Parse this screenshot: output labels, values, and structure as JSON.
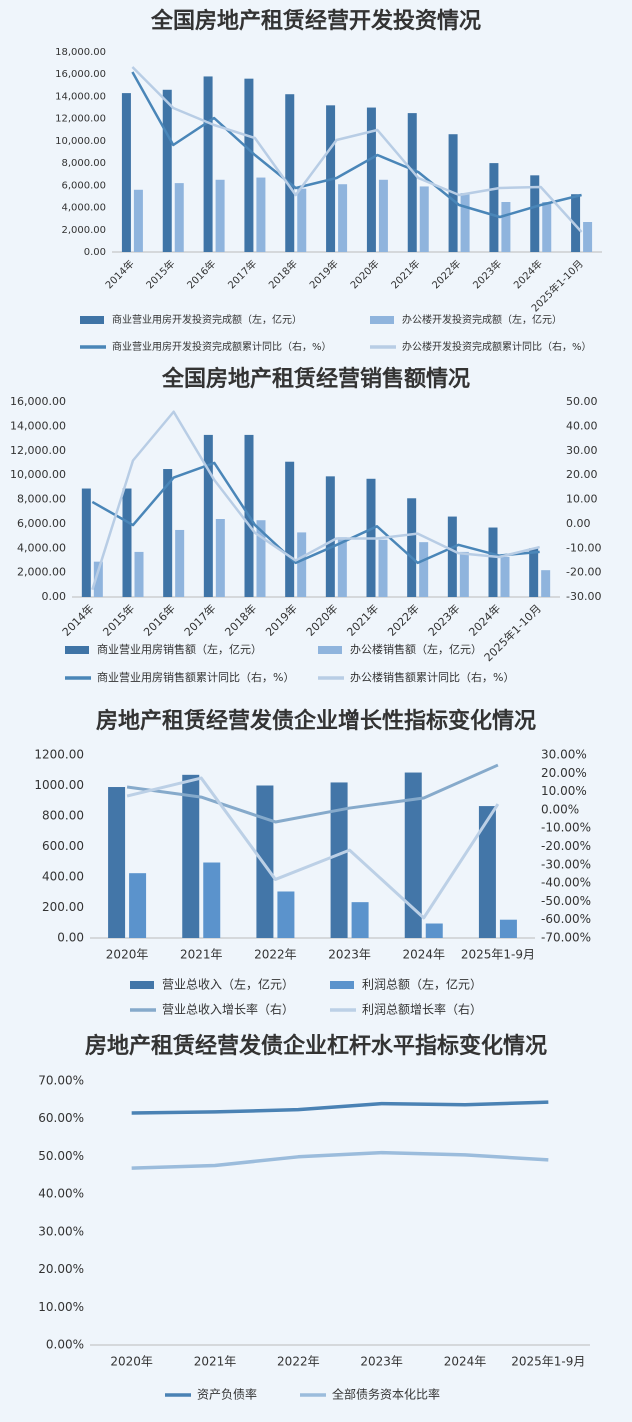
{
  "chart_data": [
    {
      "type": "combo",
      "title": "全国房地产租赁经营开发投资情况",
      "categories": [
        "2014年",
        "2015年",
        "2016年",
        "2017年",
        "2018年",
        "2019年",
        "2020年",
        "2021年",
        "2022年",
        "2023年",
        "2024年",
        "2025年1-10月"
      ],
      "ylim": [
        0,
        18000
      ],
      "yticks": [
        {
          "value": 0,
          "label": "0.00"
        },
        {
          "value": 2000,
          "label": "2,000.00"
        },
        {
          "value": 4000,
          "label": "4,000.00"
        },
        {
          "value": 6000,
          "label": "6,000.00"
        },
        {
          "value": 8000,
          "label": "8,000.00"
        },
        {
          "value": 10000,
          "label": "10,000.00"
        },
        {
          "value": 12000,
          "label": "12,000.00"
        },
        {
          "value": 14000,
          "label": "14,000.00"
        },
        {
          "value": 16000,
          "label": "16,000.00"
        },
        {
          "value": 18000,
          "label": "18,000.00"
        }
      ],
      "y2lim": [
        -40,
        40
      ],
      "series": [
        {
          "name": "商业营业用房开发投资完成额（左，亿元）",
          "type": "bar",
          "color": "#3f74a6",
          "values": [
            14300,
            14600,
            15800,
            15600,
            14200,
            13200,
            13000,
            12500,
            10600,
            8000,
            6900,
            5200
          ]
        },
        {
          "name": "办公楼开发投资完成额（左，亿元）",
          "type": "bar",
          "color": "#8fb4dd",
          "values": [
            5600,
            6200,
            6500,
            6700,
            5700,
            6100,
            6500,
            5900,
            5300,
            4500,
            4500,
            2700
          ]
        },
        {
          "name": "商业营业用房开发投资完成额累计同比（右，%）",
          "type": "line",
          "axis": "y2",
          "color": "#4a86b8",
          "values": [
            32,
            2.8,
            13.6,
            -1.2,
            -14.4,
            -10.4,
            -1.2,
            -8,
            -21.2,
            -26,
            -21.2,
            -17.2
          ]
        },
        {
          "name": "办公楼开发投资完成额累计同比（右，%）",
          "type": "line",
          "axis": "y2",
          "color": "#b8cde5",
          "values": [
            34,
            17.6,
            10.8,
            5.6,
            -17.2,
            4.8,
            8.8,
            -10.4,
            -17.2,
            -14.4,
            -14,
            -32
          ]
        }
      ]
    },
    {
      "type": "combo",
      "title": "全国房地产租赁经营销售额情况",
      "categories": [
        "2014年",
        "2015年",
        "2016年",
        "2017年",
        "2018年",
        "2019年",
        "2020年",
        "2021年",
        "2022年",
        "2023年",
        "2024年",
        "2025年1-10月"
      ],
      "ylim": [
        0,
        16000
      ],
      "yticks": [
        {
          "value": 0,
          "label": "0.00"
        },
        {
          "value": 2000,
          "label": "2,000.00"
        },
        {
          "value": 4000,
          "label": "4,000.00"
        },
        {
          "value": 6000,
          "label": "6,000.00"
        },
        {
          "value": 8000,
          "label": "8,000.00"
        },
        {
          "value": 10000,
          "label": "10,000.00"
        },
        {
          "value": 12000,
          "label": "12,000.00"
        },
        {
          "value": 14000,
          "label": "14,000.00"
        },
        {
          "value": 16000,
          "label": "16,000.00"
        }
      ],
      "y2lim": [
        -30,
        50
      ],
      "y2ticks": [
        {
          "value": -30,
          "label": "-30.00"
        },
        {
          "value": -20,
          "label": "-20.00"
        },
        {
          "value": -10,
          "label": "-10.00"
        },
        {
          "value": 0,
          "label": "0.00"
        },
        {
          "value": 10,
          "label": "10.00"
        },
        {
          "value": 20,
          "label": "20.00"
        },
        {
          "value": 30,
          "label": "30.00"
        },
        {
          "value": 40,
          "label": "40.00"
        },
        {
          "value": 50,
          "label": "50.00"
        }
      ],
      "series": [
        {
          "name": "商业营业用房销售额（左，亿元）",
          "type": "bar",
          "color": "#3f74a6",
          "values": [
            8900,
            8900,
            10500,
            13300,
            13300,
            11100,
            9900,
            9700,
            8100,
            6600,
            5700,
            4000
          ]
        },
        {
          "name": "办公楼销售额（左，亿元）",
          "type": "bar",
          "color": "#8fb4dd",
          "values": [
            2900,
            3700,
            5500,
            6400,
            6300,
            5300,
            4900,
            4700,
            4500,
            3700,
            3300,
            2200
          ]
        },
        {
          "name": "商业营业用房销售额累计同比（右，%）",
          "type": "line",
          "axis": "y2",
          "color": "#4a86b8",
          "values": [
            9,
            -0.5,
            19,
            25,
            -0.5,
            -16,
            -8.7,
            -1,
            -16,
            -8.6,
            -13,
            -11.5
          ]
        },
        {
          "name": "办公楼销售额累计同比（右，%）",
          "type": "line",
          "axis": "y2",
          "color": "#b8cde5",
          "values": [
            -27,
            26,
            46,
            18,
            -3.7,
            -15,
            -6,
            -6,
            -4,
            -12,
            -13.6,
            -9.5
          ]
        }
      ]
    },
    {
      "type": "combo",
      "title": "房地产租赁经营发债企业增长性指标变化情况",
      "categories": [
        "2020年",
        "2021年",
        "2022年",
        "2023年",
        "2024年",
        "2025年1-9月"
      ],
      "ylim": [
        0,
        1200
      ],
      "yticks": [
        {
          "value": 0,
          "label": "0.00"
        },
        {
          "value": 200,
          "label": "200.00"
        },
        {
          "value": 400,
          "label": "400.00"
        },
        {
          "value": 600,
          "label": "600.00"
        },
        {
          "value": 800,
          "label": "800.00"
        },
        {
          "value": 1000,
          "label": "1000.00"
        },
        {
          "value": 1200,
          "label": "1200.00"
        }
      ],
      "y2lim": [
        -70,
        30
      ],
      "y2ticks": [
        {
          "value": -70,
          "label": "-70.00%"
        },
        {
          "value": -60,
          "label": "-60.00%"
        },
        {
          "value": -50,
          "label": "-50.00%"
        },
        {
          "value": -40,
          "label": "-40.00%"
        },
        {
          "value": -30,
          "label": "-30.00%"
        },
        {
          "value": -20,
          "label": "-20.00%"
        },
        {
          "value": -10,
          "label": "-10.00%"
        },
        {
          "value": 0,
          "label": "0.00%"
        },
        {
          "value": 10,
          "label": "10.00%"
        },
        {
          "value": 20,
          "label": "20.00%"
        },
        {
          "value": 30,
          "label": "30.00%"
        }
      ],
      "series": [
        {
          "name": "营业总收入（左，亿元）",
          "type": "bar",
          "color": "#4376a8",
          "values": [
            990,
            1070,
            1000,
            1020,
            1085,
            865
          ]
        },
        {
          "name": "利润总额（左，亿元）",
          "type": "bar",
          "color": "#5b93cc",
          "values": [
            425,
            495,
            305,
            235,
            95,
            120
          ]
        },
        {
          "name": "营业总收入增长率（右）",
          "type": "line",
          "axis": "y2",
          "color": "#86aacb",
          "values": [
            12.5,
            7,
            -6.6,
            1,
            6.5,
            24.5
          ]
        },
        {
          "name": "利润总额增长率（右）",
          "type": "line",
          "axis": "y2",
          "color": "#bcd0e6",
          "values": [
            7.6,
            17.4,
            -38,
            -22,
            -59,
            3.2
          ]
        }
      ]
    },
    {
      "type": "line",
      "title": "房地产租赁经营发债企业杠杆水平指标变化情况",
      "categories": [
        "2020年",
        "2021年",
        "2022年",
        "2023年",
        "2024年",
        "2025年1-9月"
      ],
      "ylim": [
        0,
        70
      ],
      "yticks": [
        {
          "value": 0,
          "label": "0.00%"
        },
        {
          "value": 10,
          "label": "10.00%"
        },
        {
          "value": 20,
          "label": "20.00%"
        },
        {
          "value": 30,
          "label": "30.00%"
        },
        {
          "value": 40,
          "label": "40.00%"
        },
        {
          "value": 50,
          "label": "50.00%"
        },
        {
          "value": 60,
          "label": "60.00%"
        },
        {
          "value": 70,
          "label": "70.00%"
        }
      ],
      "series": [
        {
          "name": "资产负债率",
          "type": "line",
          "color": "#4a82b4",
          "values": [
            61.5,
            61.8,
            62.4,
            64.0,
            63.7,
            64.4
          ]
        },
        {
          "name": "全部债务资本化比率",
          "type": "line",
          "color": "#9bbcdc",
          "values": [
            46.9,
            47.6,
            49.9,
            51.0,
            50.4,
            49.1
          ]
        }
      ]
    }
  ]
}
